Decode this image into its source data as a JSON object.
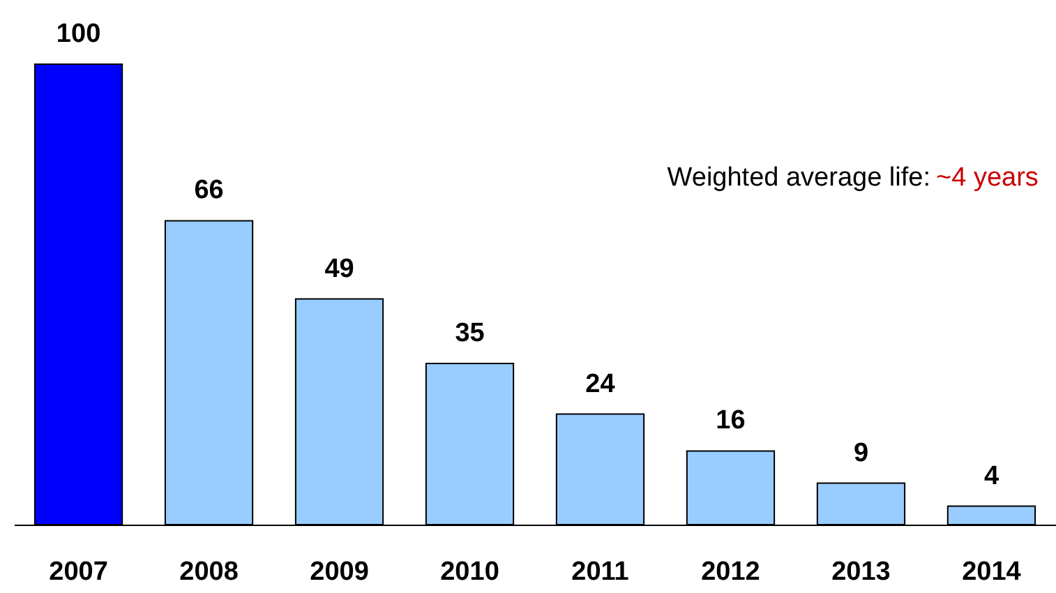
{
  "chart_data": {
    "type": "bar",
    "categories": [
      "2007",
      "2008",
      "2009",
      "2010",
      "2011",
      "2012",
      "2013",
      "2014"
    ],
    "values": [
      100,
      66,
      49,
      35,
      24,
      16,
      9,
      4
    ],
    "colors": [
      "#0000ff",
      "#99ccff",
      "#99ccff",
      "#99ccff",
      "#99ccff",
      "#99ccff",
      "#99ccff",
      "#99ccff"
    ],
    "data_labels": true,
    "annotations": [
      "Weighted average life:",
      "~4 years"
    ],
    "grid": false
  }
}
